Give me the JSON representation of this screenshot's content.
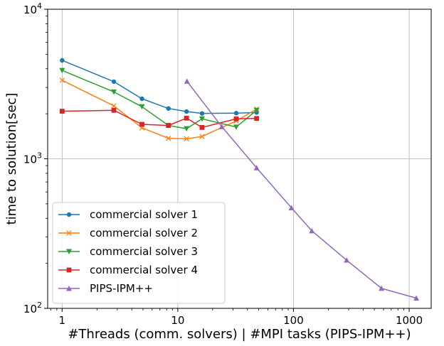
{
  "chart_data": {
    "type": "line",
    "title": "",
    "xlabel": "#Threads (comm. solvers) | #MPI tasks (PIPS-IPM++)",
    "ylabel": "time to solution[sec]",
    "xscale": "log",
    "yscale": "log",
    "xlim": [
      0.75,
      1550
    ],
    "ylim": [
      100,
      10000
    ],
    "grid": true,
    "legend_position": "lower-left",
    "x_ticks": [
      {
        "value": 1,
        "label": "1"
      },
      {
        "value": 10,
        "label": "10"
      },
      {
        "value": 100,
        "label": "100"
      },
      {
        "value": 1000,
        "label": "1000"
      }
    ],
    "y_ticks": [
      {
        "value": 100,
        "base": "10",
        "exp": "2"
      },
      {
        "value": 1000,
        "base": "10",
        "exp": "3"
      },
      {
        "value": 10000,
        "base": "10",
        "exp": "4"
      }
    ],
    "series": [
      {
        "name": "commercial solver 1",
        "color": "#1f77b4",
        "marker": "circle",
        "x": [
          1,
          2.8,
          4.9,
          8.3,
          11.9,
          16.2,
          32,
          48
        ],
        "y": [
          4550,
          3280,
          2520,
          2170,
          2070,
          2010,
          2020,
          2040
        ]
      },
      {
        "name": "commercial solver 2",
        "color": "#ff7f0e",
        "marker": "x",
        "x": [
          1,
          2.8,
          4.9,
          8.3,
          11.9,
          16.2,
          32,
          48
        ],
        "y": [
          3350,
          2260,
          1610,
          1370,
          1360,
          1410,
          1790,
          2150
        ]
      },
      {
        "name": "commercial solver 3",
        "color": "#2ca02c",
        "marker": "triangle-down",
        "x": [
          1,
          2.8,
          4.9,
          8.3,
          11.9,
          16.2,
          32,
          48
        ],
        "y": [
          3900,
          2800,
          2230,
          1670,
          1590,
          1850,
          1630,
          2110
        ]
      },
      {
        "name": "commercial solver 4",
        "color": "#d62728",
        "marker": "square",
        "x": [
          1,
          2.8,
          4.9,
          8.3,
          11.9,
          16.2,
          32,
          48
        ],
        "y": [
          2080,
          2110,
          1700,
          1670,
          1870,
          1620,
          1850,
          1860
        ]
      },
      {
        "name": "PIPS-IPM++",
        "color": "#9467bd",
        "marker": "triangle-up",
        "x": [
          12,
          24,
          48,
          96,
          144,
          288,
          576,
          1152
        ],
        "y": [
          3300,
          1640,
          870,
          470,
          330,
          210,
          136,
          117
        ]
      }
    ]
  }
}
